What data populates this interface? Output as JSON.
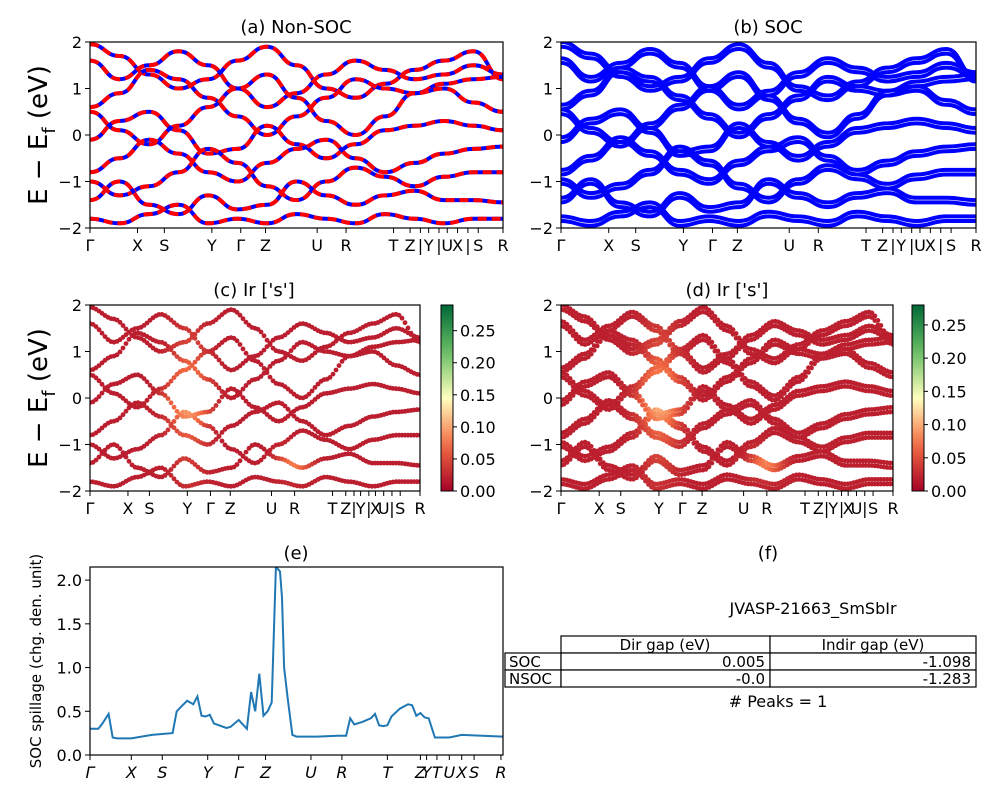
{
  "page": {
    "source": "JVASP-21663_SmSbIr"
  },
  "chart_data": [
    {
      "id": "a",
      "type": "line",
      "title": "(a) Non-SOC",
      "ylabel": "$E - E_f$ (eV)",
      "ylabel_text": "E − E",
      "ylabel_sub": "f",
      "ylabel_tail": " (eV)",
      "ylim": [
        -2,
        2
      ],
      "yticks": [
        "2",
        "1",
        "0",
        "−1",
        "−2"
      ],
      "xticks": [
        "Γ",
        "X",
        "S",
        "Y",
        "Γ",
        "Z",
        "U",
        "R",
        "T",
        "Z",
        "|",
        "Y",
        "|",
        "U",
        "X",
        "|",
        "S",
        "R"
      ],
      "series": [
        {
          "color": "#0000ff",
          "style": "solid"
        },
        {
          "color": "#ff0000",
          "style": "dashed"
        }
      ],
      "bands": [
        [
          1.95,
          1.7,
          1.3,
          1.0,
          1.2,
          1.6,
          1.9,
          1.5,
          1.0,
          0.8,
          1.1,
          1.4,
          1.6,
          1.8,
          1.2
        ],
        [
          1.6,
          1.2,
          1.5,
          1.8,
          1.5,
          1.0,
          0.6,
          0.9,
          1.3,
          1.6,
          1.4,
          1.2,
          1.3,
          1.5,
          1.3
        ],
        [
          0.6,
          0.9,
          1.4,
          1.2,
          0.8,
          0.4,
          0.0,
          0.4,
          0.8,
          1.2,
          1.0,
          0.9,
          1.1,
          1.2,
          1.25
        ],
        [
          0.5,
          0.1,
          -0.2,
          0.2,
          0.6,
          1.0,
          1.3,
          0.8,
          0.3,
          0.0,
          0.4,
          0.9,
          1.0,
          0.7,
          0.5
        ],
        [
          -0.1,
          0.3,
          0.5,
          0.1,
          -0.4,
          -0.3,
          0.2,
          -0.2,
          -0.5,
          -0.2,
          0.1,
          0.2,
          0.3,
          0.2,
          0.1
        ],
        [
          -0.8,
          -0.5,
          -0.1,
          -0.4,
          -0.8,
          -1.0,
          -0.6,
          -0.3,
          -0.1,
          -0.5,
          -0.8,
          -0.6,
          -0.4,
          -0.3,
          -0.25
        ],
        [
          -1.0,
          -1.3,
          -1.1,
          -0.8,
          -0.3,
          -0.6,
          -1.1,
          -1.4,
          -1.0,
          -0.7,
          -0.9,
          -1.1,
          -0.9,
          -0.8,
          -0.8
        ],
        [
          -1.4,
          -1.0,
          -1.5,
          -1.7,
          -1.3,
          -1.6,
          -1.5,
          -1.0,
          -1.3,
          -1.5,
          -1.3,
          -1.2,
          -1.4,
          -1.4,
          -1.45
        ],
        [
          -1.8,
          -1.9,
          -1.7,
          -1.5,
          -1.9,
          -1.8,
          -1.9,
          -1.7,
          -1.8,
          -1.9,
          -1.7,
          -1.8,
          -1.9,
          -1.8,
          -1.8
        ]
      ]
    },
    {
      "id": "b",
      "type": "line",
      "title": "(b) SOC",
      "ylim": [
        -2,
        2
      ],
      "yticks": [
        "2",
        "1",
        "0",
        "−1",
        "−2"
      ],
      "xticks": [
        "Γ",
        "X",
        "S",
        "Y",
        "Γ",
        "Z",
        "U",
        "R",
        "T",
        "Z",
        "|",
        "Y",
        "|",
        "U",
        "X",
        "|",
        "S",
        "R"
      ],
      "series": [
        {
          "color": "#0000ff",
          "style": "solid"
        }
      ],
      "bands": [
        [
          1.95,
          1.7,
          1.3,
          1.0,
          1.2,
          1.6,
          1.9,
          1.5,
          1.0,
          0.8,
          1.1,
          1.4,
          1.6,
          1.8,
          1.2
        ],
        [
          1.6,
          1.2,
          1.5,
          1.8,
          1.5,
          1.0,
          0.6,
          0.9,
          1.3,
          1.6,
          1.4,
          1.2,
          1.3,
          1.5,
          1.3
        ],
        [
          0.6,
          0.9,
          1.4,
          1.2,
          0.8,
          0.4,
          0.0,
          0.4,
          0.8,
          1.2,
          1.0,
          0.9,
          1.1,
          1.2,
          1.25
        ],
        [
          0.5,
          0.1,
          -0.2,
          0.2,
          0.6,
          1.0,
          1.3,
          0.8,
          0.3,
          0.0,
          0.4,
          0.9,
          1.0,
          0.7,
          0.5
        ],
        [
          -0.1,
          0.3,
          0.5,
          0.1,
          -0.4,
          -0.3,
          0.2,
          -0.2,
          -0.5,
          -0.2,
          0.1,
          0.2,
          0.3,
          0.2,
          0.1
        ],
        [
          -0.8,
          -0.5,
          -0.1,
          -0.4,
          -0.8,
          -1.0,
          -0.6,
          -0.3,
          -0.1,
          -0.5,
          -0.8,
          -0.6,
          -0.4,
          -0.3,
          -0.25
        ],
        [
          -1.0,
          -1.3,
          -1.1,
          -0.8,
          -0.3,
          -0.6,
          -1.1,
          -1.4,
          -1.0,
          -0.7,
          -0.9,
          -1.1,
          -0.9,
          -0.8,
          -0.8
        ],
        [
          -1.4,
          -1.0,
          -1.5,
          -1.7,
          -1.3,
          -1.6,
          -1.5,
          -1.0,
          -1.3,
          -1.5,
          -1.3,
          -1.2,
          -1.4,
          -1.4,
          -1.45
        ],
        [
          -1.8,
          -1.9,
          -1.7,
          -1.5,
          -1.9,
          -1.8,
          -1.9,
          -1.7,
          -1.8,
          -1.9,
          -1.7,
          -1.8,
          -1.9,
          -1.8,
          -1.8
        ]
      ]
    },
    {
      "id": "c",
      "type": "scatter",
      "title": "(c)  Ir ['s']",
      "ylabel_text": "E − E",
      "ylabel_sub": "f",
      "ylabel_tail": " (eV)",
      "ylim": [
        -2,
        2
      ],
      "yticks": [
        "2",
        "1",
        "0",
        "−1",
        "−2"
      ],
      "xticks": [
        "Γ",
        "X",
        "S",
        "Y",
        "Γ",
        "Z",
        "U",
        "R",
        "T",
        "Z",
        "|",
        "Y",
        "|",
        "X",
        "U",
        "|",
        "S",
        "R"
      ],
      "colorbar": {
        "range": [
          0.0,
          0.29
        ],
        "ticks": [
          "0.25",
          "0.20",
          "0.15",
          "0.10",
          "0.05",
          "0.00"
        ],
        "colormap": "RdYlGn"
      }
    },
    {
      "id": "d",
      "type": "scatter",
      "title": "(d) Ir ['s']",
      "ylim": [
        -2,
        2
      ],
      "yticks": [
        "2",
        "1",
        "0",
        "−1",
        "−2"
      ],
      "xticks": [
        "Γ",
        "X",
        "S",
        "Y",
        "Γ",
        "Z",
        "U",
        "R",
        "T",
        "Z",
        "|",
        "Y",
        "|",
        "X",
        "U",
        "|",
        "S",
        "R"
      ],
      "colorbar": {
        "range": [
          0.0,
          0.28
        ],
        "ticks": [
          "0.25",
          "0.20",
          "0.15",
          "0.10",
          "0.05",
          "0.00"
        ],
        "colormap": "RdYlGn"
      }
    },
    {
      "id": "e",
      "type": "line",
      "title": "(e)",
      "ylabel": "SOC spillage (chg. den. unit)",
      "ylim": [
        0.0,
        2.15
      ],
      "yticks": [
        "2.0",
        "1.5",
        "1.0",
        "0.5",
        "0.0"
      ],
      "yticks_values": [
        2.0,
        1.5,
        1.0,
        0.5,
        0.0
      ],
      "xticks": [
        "Γ",
        "X",
        "S",
        "Y",
        "Γ",
        "Z",
        "U",
        "R",
        "T",
        "Z",
        "Y",
        "T",
        "U",
        "X",
        "S",
        "R"
      ],
      "series": [
        {
          "color": "#1f77b4",
          "x": [
            0,
            0.02,
            0.03,
            0.045,
            0.055,
            0.065,
            0.1,
            0.15,
            0.2,
            0.21,
            0.22,
            0.235,
            0.25,
            0.26,
            0.27,
            0.28,
            0.29,
            0.3,
            0.33,
            0.34,
            0.36,
            0.38,
            0.39,
            0.4,
            0.41,
            0.42,
            0.43,
            0.44,
            0.45,
            0.46,
            0.465,
            0.47,
            0.48,
            0.49,
            0.5,
            0.55,
            0.6,
            0.62,
            0.63,
            0.64,
            0.66,
            0.68,
            0.69,
            0.7,
            0.71,
            0.72,
            0.73,
            0.75,
            0.77,
            0.78,
            0.79,
            0.8,
            0.81,
            0.82,
            0.835,
            0.86,
            0.87,
            0.9,
            0.95,
            1.0
          ],
          "y": [
            0.3,
            0.3,
            0.36,
            0.47,
            0.2,
            0.19,
            0.19,
            0.23,
            0.25,
            0.5,
            0.55,
            0.62,
            0.58,
            0.67,
            0.45,
            0.44,
            0.46,
            0.36,
            0.31,
            0.32,
            0.4,
            0.3,
            0.72,
            0.5,
            0.93,
            0.45,
            0.5,
            0.6,
            2.15,
            2.1,
            1.8,
            1.0,
            0.6,
            0.23,
            0.21,
            0.21,
            0.22,
            0.22,
            0.42,
            0.35,
            0.38,
            0.42,
            0.47,
            0.34,
            0.33,
            0.34,
            0.44,
            0.53,
            0.58,
            0.57,
            0.45,
            0.48,
            0.43,
            0.42,
            0.2,
            0.2,
            0.2,
            0.23,
            0.22,
            0.21
          ]
        }
      ]
    },
    {
      "id": "f",
      "type": "table",
      "title": "(f)",
      "caption": "JVASP-21663_SmSbIr",
      "columns": [
        "",
        "Dir gap (eV)",
        "Indir gap (eV)"
      ],
      "rows": [
        [
          "SOC",
          "0.005",
          "-1.098"
        ],
        [
          "NSOC",
          "-0.0",
          "-1.283"
        ]
      ],
      "note": "# Peaks = 1"
    }
  ]
}
